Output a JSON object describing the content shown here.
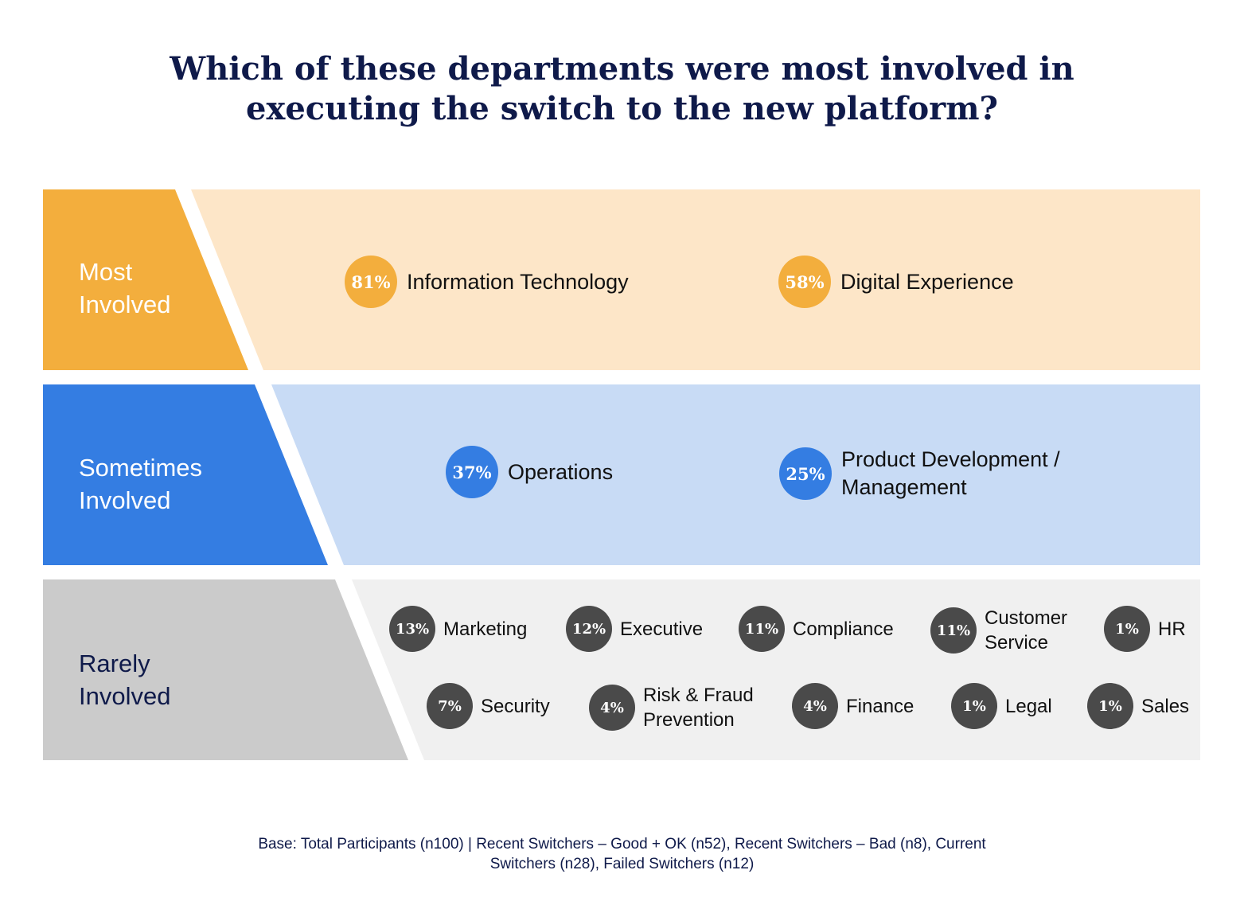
{
  "title": "Which of these departments were most involved in\nexecuting the switch to the new platform?",
  "colors": {
    "most": "#F3AE3D",
    "most_bg": "#FDE6C8",
    "sometimes": "#347DE2",
    "sometimes_bg": "#C8DBF5",
    "rarely": "#CBCBCB",
    "rarely_bg": "#F0F0F0",
    "rarely_badge": "#4A4A4A",
    "title": "#0F1A4A"
  },
  "chart_data": {
    "type": "table",
    "title": "Which of these departments were most involved in executing the switch to the new platform?",
    "tiers": [
      {
        "label": "Most\nInvolved",
        "items": [
          {
            "pct": "81%",
            "dept": "Information Technology",
            "value": 81
          },
          {
            "pct": "58%",
            "dept": "Digital Experience",
            "value": 58
          }
        ]
      },
      {
        "label": "Sometimes\nInvolved",
        "items": [
          {
            "pct": "37%",
            "dept": "Operations",
            "value": 37
          },
          {
            "pct": "25%",
            "dept": "Product Development /\nManagement",
            "value": 25
          }
        ]
      },
      {
        "label": "Rarely\nInvolved",
        "items": [
          {
            "pct": "13%",
            "dept": "Marketing",
            "value": 13
          },
          {
            "pct": "12%",
            "dept": "Executive",
            "value": 12
          },
          {
            "pct": "11%",
            "dept": "Compliance",
            "value": 11
          },
          {
            "pct": "11%",
            "dept": "Customer\nService",
            "value": 11
          },
          {
            "pct": "1%",
            "dept": "HR",
            "value": 1
          },
          {
            "pct": "7%",
            "dept": "Security",
            "value": 7
          },
          {
            "pct": "4%",
            "dept": "Risk & Fraud\nPrevention",
            "value": 4
          },
          {
            "pct": "4%",
            "dept": "Finance",
            "value": 4
          },
          {
            "pct": "1%",
            "dept": "Legal",
            "value": 1
          },
          {
            "pct": "1%",
            "dept": "Sales",
            "value": 1
          }
        ]
      }
    ]
  },
  "base_note": "Base: Total Participants (n100) | Recent Switchers – Good + OK (n52), Recent Switchers – Bad (n8), Current\nSwitchers (n28), Failed Switchers (n12)"
}
